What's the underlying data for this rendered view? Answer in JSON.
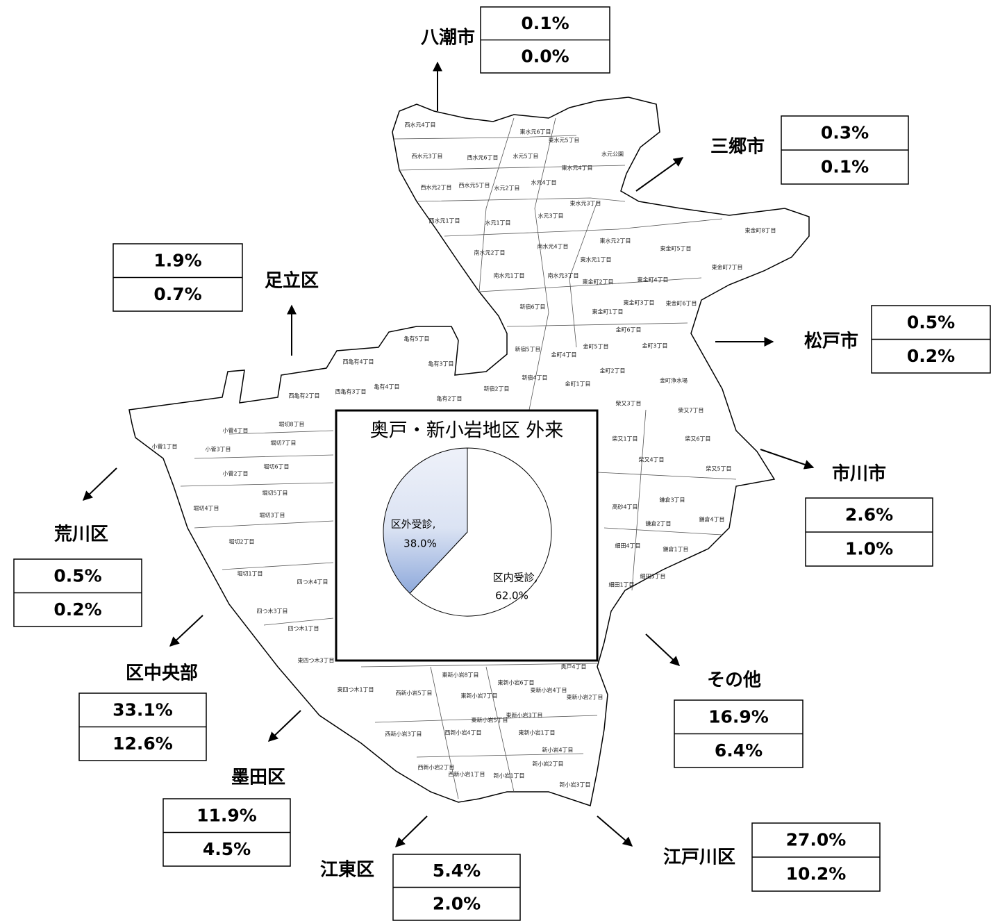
{
  "map": {
    "destinations": [
      {
        "name": "八潮市",
        "shares": [
          "0.1%",
          "0.0%"
        ]
      },
      {
        "name": "三郷市",
        "shares": [
          "0.3%",
          "0.1%"
        ]
      },
      {
        "name": "足立区",
        "shares": [
          "1.9%",
          "0.7%"
        ]
      },
      {
        "name": "松戸市",
        "shares": [
          "0.5%",
          "0.2%"
        ]
      },
      {
        "name": "荒川区",
        "shares": [
          "0.5%",
          "0.2%"
        ]
      },
      {
        "name": "市川市",
        "shares": [
          "2.6%",
          "1.0%"
        ]
      },
      {
        "name": "区中央部",
        "shares": [
          "33.1%",
          "12.6%"
        ]
      },
      {
        "name": "その他",
        "shares": [
          "16.9%",
          "6.4%"
        ]
      },
      {
        "name": "墨田区",
        "shares": [
          "11.9%",
          "4.5%"
        ]
      },
      {
        "name": "江東区",
        "shares": [
          "5.4%",
          "2.0%"
        ]
      },
      {
        "name": "江戸川区",
        "shares": [
          "27.0%",
          "10.2%"
        ]
      }
    ],
    "towns": [
      "西水元4丁目",
      "東水元6丁目",
      "東水元5丁目",
      "水元公園",
      "西水元3丁目",
      "西水元6丁目",
      "水元5丁目",
      "東水元4丁目",
      "西水元2丁目",
      "西水元5丁目",
      "水元2丁目",
      "水元4丁目",
      "東水元3丁目",
      "西水元1丁目",
      "水元1丁目",
      "水元3丁目",
      "東金町8丁目",
      "南水元2丁目",
      "南水元4丁目",
      "東水元2丁目",
      "東金町5丁目",
      "東水元1丁目",
      "東金町7丁目",
      "南水元1丁目",
      "南水元3丁目",
      "東金町2丁目",
      "東金町4丁目",
      "新宿6丁目",
      "東金町3丁目",
      "東金町6丁目",
      "東金町1丁目",
      "金町6丁目",
      "亀有5丁目",
      "新宿5丁目",
      "金町5丁目",
      "金町3丁目",
      "金町4丁目",
      "西亀有4丁目",
      "亀有3丁目",
      "新宿4丁目",
      "金町2丁目",
      "金町浄水場",
      "亀有4丁目",
      "新宿2丁目",
      "金町1丁目",
      "西亀有2丁目",
      "西亀有3丁目",
      "亀有2丁目",
      "柴又3丁目",
      "柴又7丁目",
      "堀切8丁目",
      "小菅4丁目",
      "堀切7丁目",
      "柴又1丁目",
      "柴又6丁目",
      "小菅1丁目",
      "小菅3丁目",
      "堀切6丁目",
      "柴又4丁目",
      "柴又5丁目",
      "小菅2丁目",
      "堀切5丁目",
      "堀切4丁目",
      "鎌倉3丁目",
      "高砂4丁目",
      "堀切3丁目",
      "鎌倉2丁目",
      "鎌倉4丁目",
      "堀切2丁目",
      "細田4丁目",
      "鎌倉1丁目",
      "堀切1丁目",
      "四つ木4丁目",
      "細田5丁目",
      "細田1丁目",
      "四つ木3丁目",
      "四つ木1丁目",
      "東四つ木3丁目",
      "奥戸4丁目",
      "東新小岩8丁目",
      "東新小岩6丁目",
      "東四つ木1丁目",
      "西新小岩5丁目",
      "東新小岩7丁目",
      "東新小岩4丁目",
      "東新小岩2丁目",
      "東新小岩3丁目",
      "東新小岩5丁目",
      "西新小岩3丁目",
      "西新小岩4丁目",
      "東新小岩1丁目",
      "新小岩4丁目",
      "新小岩2丁目",
      "西新小岩2丁目",
      "西新小岩1丁目",
      "新小岩1丁目",
      "新小岩3丁目"
    ]
  },
  "chart_data": {
    "type": "pie",
    "title": "奥戸・新小岩地区 外来",
    "categories": [
      "区内受診,",
      "区外受診,"
    ],
    "values": [
      62.0,
      38.0
    ],
    "value_labels": [
      "62.0%",
      "38.0%"
    ],
    "colors": [
      "#ffffff",
      "#8ea9db"
    ]
  }
}
